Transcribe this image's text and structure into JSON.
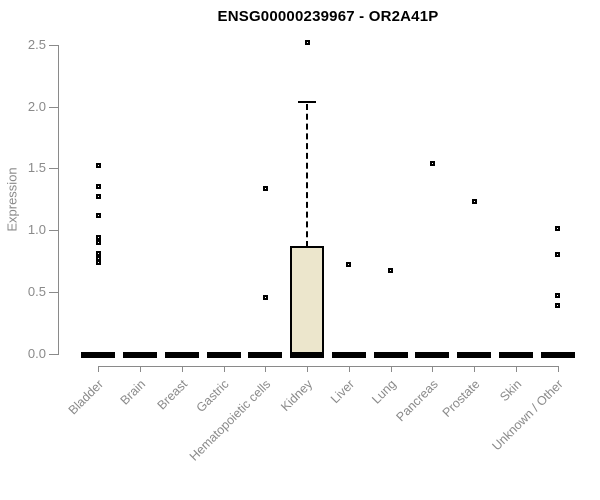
{
  "chart_data": {
    "type": "boxplot",
    "title": "ENSG00000239967 - OR2A41P",
    "xlabel": "",
    "ylabel": "Expression",
    "ylim": [
      0,
      2.5
    ],
    "grid": false,
    "legend": null,
    "yticks": [
      {
        "value": 0.0,
        "label": "0.0"
      },
      {
        "value": 0.5,
        "label": "0.5"
      },
      {
        "value": 1.0,
        "label": "1.0"
      },
      {
        "value": 1.5,
        "label": "1.5"
      },
      {
        "value": 2.0,
        "label": "2.0"
      },
      {
        "value": 2.5,
        "label": "2.5"
      }
    ],
    "categories": [
      "Bladder",
      "Brain",
      "Breast",
      "Gastric",
      "Hematopoietic cells",
      "Kidney",
      "Liver",
      "Lung",
      "Pancreas",
      "Prostate",
      "Skin",
      "Unknown / Other"
    ],
    "series": [
      {
        "category": "Bladder",
        "whisker_low": 0,
        "q1": 0,
        "median": 0,
        "q3": 0,
        "whisker_high": 0,
        "outliers": [
          1.52,
          1.35,
          1.27,
          1.12,
          0.94,
          0.9,
          0.81,
          0.77,
          0.74
        ]
      },
      {
        "category": "Brain",
        "whisker_low": 0,
        "q1": 0,
        "median": 0,
        "q3": 0,
        "whisker_high": 0,
        "outliers": []
      },
      {
        "category": "Breast",
        "whisker_low": 0,
        "q1": 0,
        "median": 0,
        "q3": 0,
        "whisker_high": 0,
        "outliers": []
      },
      {
        "category": "Gastric",
        "whisker_low": 0,
        "q1": 0,
        "median": 0,
        "q3": 0,
        "whisker_high": 0,
        "outliers": []
      },
      {
        "category": "Hematopoietic cells",
        "whisker_low": 0,
        "q1": 0,
        "median": 0,
        "q3": 0,
        "whisker_high": 0,
        "outliers": [
          1.34,
          0.45
        ]
      },
      {
        "category": "Kidney",
        "whisker_low": 0,
        "q1": 0,
        "median": 0,
        "q3": 0.86,
        "whisker_high": 2.04,
        "outliers": [
          2.52
        ]
      },
      {
        "category": "Liver",
        "whisker_low": 0,
        "q1": 0,
        "median": 0,
        "q3": 0,
        "whisker_high": 0,
        "outliers": [
          0.72
        ]
      },
      {
        "category": "Lung",
        "whisker_low": 0,
        "q1": 0,
        "median": 0,
        "q3": 0,
        "whisker_high": 0,
        "outliers": [
          0.67
        ]
      },
      {
        "category": "Pancreas",
        "whisker_low": 0,
        "q1": 0,
        "median": 0,
        "q3": 0,
        "whisker_high": 0,
        "outliers": [
          1.54
        ]
      },
      {
        "category": "Prostate",
        "whisker_low": 0,
        "q1": 0,
        "median": 0,
        "q3": 0,
        "whisker_high": 0,
        "outliers": [
          1.23
        ]
      },
      {
        "category": "Skin",
        "whisker_low": 0,
        "q1": 0,
        "median": 0,
        "q3": 0,
        "whisker_high": 0,
        "outliers": []
      },
      {
        "category": "Unknown / Other",
        "whisker_low": 0,
        "q1": 0,
        "median": 0,
        "q3": 0,
        "whisker_high": 0,
        "outliers": [
          1.01,
          0.8,
          0.47,
          0.39
        ]
      }
    ],
    "colors": {
      "background": "#ffffff",
      "box_fill": "#ece6cc",
      "box_stroke": "#000000",
      "point_color": "#000000",
      "median_color": "#000000",
      "axis_color": "#8a8a8a",
      "tick_label_color": "#8a8a8a",
      "title_color": "#000000"
    }
  }
}
